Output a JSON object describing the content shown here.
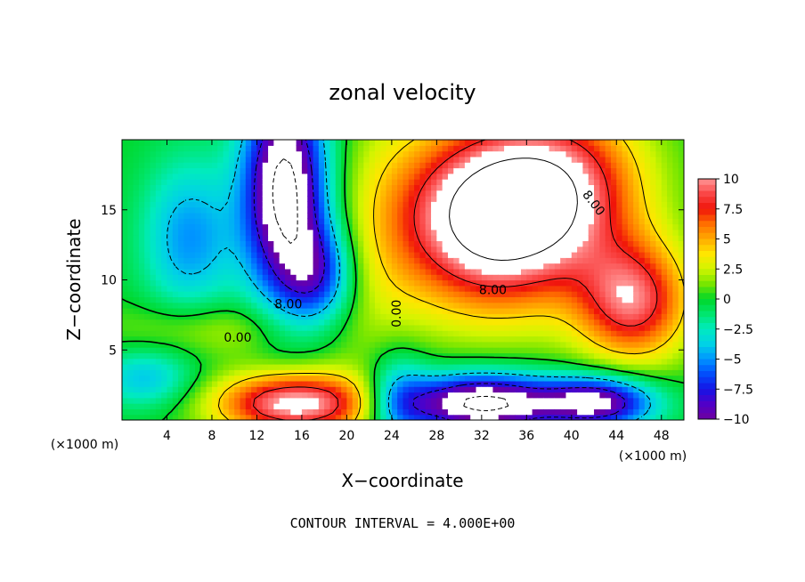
{
  "chart_data": {
    "type": "heatmap",
    "title": "zonal velocity",
    "xlabel": "X−coordinate",
    "ylabel": "Z−coordinate",
    "x_unit_label": "(×1000 m)",
    "footer": "CONTOUR INTERVAL = 4.000E+00",
    "xlim": [
      0,
      50
    ],
    "ylim": [
      0,
      20
    ],
    "x_ticks": [
      4,
      8,
      12,
      16,
      20,
      24,
      28,
      32,
      36,
      40,
      44,
      48
    ],
    "y_ticks": [
      5,
      10,
      15
    ],
    "colorbar": {
      "range": [
        -10,
        10
      ],
      "ticks": [
        "10",
        "7.5",
        "5",
        "2.5",
        "0",
        "−2.5",
        "−5",
        "−7.5",
        "−10"
      ],
      "tick_values": [
        10,
        7.5,
        5,
        2.5,
        0,
        -2.5,
        -5,
        -7.5,
        -10
      ],
      "over_color": "#ffffff"
    },
    "contour_interval": 4.0,
    "contour_labels": [
      {
        "text": "8.00",
        "x": 42,
        "y": 15.5,
        "rotate": 52
      },
      {
        "text": "8.00",
        "x": 33,
        "y": 9.3,
        "rotate": 0
      },
      {
        "text": "8.00",
        "x": 14.8,
        "y": 8.3,
        "rotate": 0
      },
      {
        "text": "0.00",
        "x": 10.3,
        "y": 5.9,
        "rotate": 0
      },
      {
        "text": "0.00",
        "x": 24.4,
        "y": 7.6,
        "rotate": -90
      }
    ],
    "features": [
      {
        "name": "upper left negative jet",
        "x": 14.5,
        "z": 14.5,
        "value": -12
      },
      {
        "name": "upper right positive jet",
        "x": 34,
        "z": 14.5,
        "value": 12
      },
      {
        "name": "lower left positive core",
        "x": 15,
        "z": 1.5,
        "value": 11
      },
      {
        "name": "lower right negative core",
        "x": 33,
        "z": 1.2,
        "value": -12
      },
      {
        "name": "right boundary positive",
        "x": 46.5,
        "z": 7.8,
        "value": 11
      }
    ]
  }
}
